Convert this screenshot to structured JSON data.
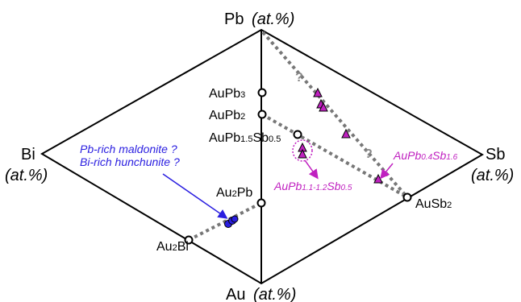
{
  "vertices": {
    "top": {
      "element": "Pb",
      "unit": "(at.%)"
    },
    "left": {
      "element": "Bi",
      "unit": "(at.%)"
    },
    "right": {
      "element": "Sb",
      "unit": "(at.%)"
    },
    "bottom": {
      "element": "Au",
      "unit": "(at.%)"
    }
  },
  "phases": {
    "aupb3": {
      "base": "AuPb",
      "sub": "3"
    },
    "aupb2": {
      "base": "AuPb",
      "sub": "2"
    },
    "aupbsb": {
      "a": "AuPb",
      "s1": "1.5",
      "b": "Sb",
      "s2": "0.5"
    },
    "au2pb": {
      "a": "Au",
      "s1": "2",
      "b": "Pb"
    },
    "au2bi": {
      "a": "Au",
      "s1": "2",
      "b": "Bi"
    },
    "ausb2": {
      "base": "AuSb",
      "sub": "2"
    }
  },
  "annotations": {
    "question": "?",
    "maldonite": "Pb-rich maldonite ?",
    "hunchunite": "Bi-rich hunchunite ?",
    "purple1": {
      "a": "AuPb",
      "s1": "0.4",
      "b": "Sb",
      "s2": "1.6"
    },
    "purple2": {
      "a": "AuPb",
      "s1": "1.1-1.2",
      "b": "Sb",
      "s2": "0.5"
    }
  },
  "colors": {
    "purple": "#c020c0",
    "blue": "#2a1ee0",
    "dotted_line": "#777777"
  }
}
